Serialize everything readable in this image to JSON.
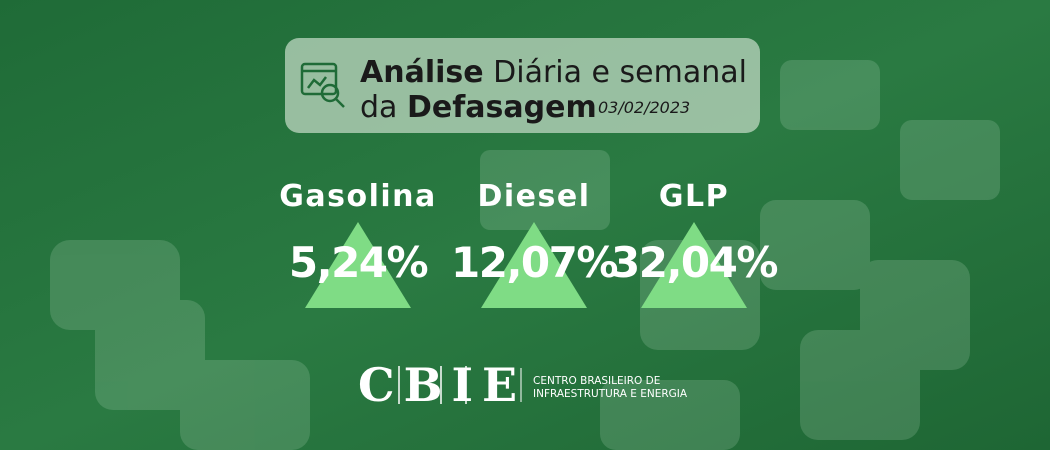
{
  "header": {
    "title_bold": "Análise",
    "title_rest": "Diária e semanal",
    "line2_prefix": "da",
    "line2_bold": "Defasagem",
    "date": "03/02/2023"
  },
  "fuels": [
    {
      "name": "Gasolina",
      "value": "5,24%"
    },
    {
      "name": "Diesel",
      "value": "12,07%"
    },
    {
      "name": "GLP",
      "value": "32,04%"
    }
  ],
  "logo": {
    "mark": "CBIE",
    "name_line1": "CENTRO BRASILEIRO DE",
    "name_line2": "INFRAESTRUTURA E ENERGIA"
  }
}
